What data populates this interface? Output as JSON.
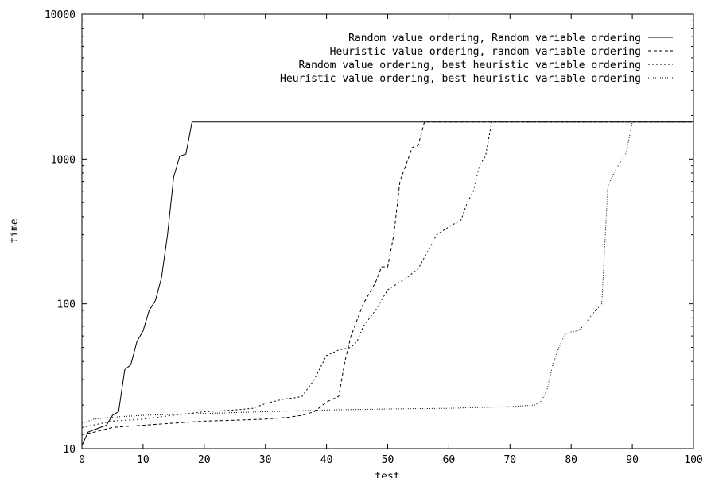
{
  "chart_data": {
    "type": "line",
    "xlabel": "test",
    "ylabel": "time",
    "xlim": [
      0,
      100
    ],
    "ylim": [
      10,
      10000
    ],
    "yscale": "log",
    "grid": false,
    "legend_position": "top-right",
    "x_ticks": [
      0,
      10,
      20,
      30,
      40,
      50,
      60,
      70,
      80,
      90,
      100
    ],
    "y_ticks": [
      10,
      100,
      1000,
      10000
    ],
    "x_tick_labels": [
      "0",
      "10",
      "20",
      "30",
      "40",
      "50",
      "60",
      "70",
      "80",
      "90",
      "100"
    ],
    "y_tick_labels": [
      "10",
      "100",
      "1000",
      "10000"
    ],
    "series": [
      {
        "name": "Random value ordering, Random variable ordering",
        "dash": "solid",
        "x": [
          0,
          1,
          2,
          3,
          4,
          5,
          6,
          7,
          8,
          9,
          10,
          11,
          12,
          13,
          14,
          15,
          16,
          17,
          18,
          100
        ],
        "y": [
          10.5,
          13,
          13.5,
          14,
          14.5,
          17,
          18,
          35,
          38,
          55,
          65,
          90,
          105,
          150,
          300,
          750,
          1050,
          1080,
          1800,
          1800
        ]
      },
      {
        "name": "Heuristic value ordering, random variable ordering",
        "dash": "dashed",
        "x": [
          0,
          2,
          5,
          10,
          15,
          20,
          25,
          30,
          34,
          36,
          38,
          40,
          42,
          43,
          44,
          46,
          48,
          49,
          50,
          51,
          52,
          54,
          55,
          56,
          100
        ],
        "y": [
          12.5,
          13,
          14,
          14.5,
          15,
          15.5,
          15.7,
          16,
          16.5,
          17,
          18,
          21,
          23,
          40,
          60,
          100,
          140,
          180,
          180,
          300,
          700,
          1200,
          1250,
          1800,
          1800
        ]
      },
      {
        "name": "Random value ordering, best heuristic variable ordering",
        "dash": "dotted",
        "x": [
          0,
          5,
          10,
          15,
          20,
          25,
          28,
          30,
          33,
          35,
          36,
          38,
          40,
          42,
          44,
          45,
          46,
          48,
          50,
          53,
          55,
          57,
          58,
          60,
          62,
          63,
          64,
          65,
          66,
          67,
          100
        ],
        "y": [
          14,
          15.5,
          16,
          17,
          18,
          18.5,
          19,
          20.5,
          22,
          22.5,
          23,
          30,
          44,
          48,
          50,
          55,
          70,
          90,
          125,
          150,
          175,
          250,
          300,
          340,
          380,
          500,
          600,
          900,
          1050,
          1800,
          1800
        ]
      },
      {
        "name": "Heuristic value ordering, best heuristic variable ordering",
        "dash": "fine-dotted",
        "x": [
          0,
          2,
          5,
          10,
          20,
          30,
          40,
          50,
          60,
          70,
          74,
          75,
          76,
          77,
          78,
          79,
          80,
          81,
          82,
          83,
          84,
          85,
          86,
          87,
          88,
          89,
          90,
          100
        ],
        "y": [
          15,
          16,
          16.5,
          17,
          17.5,
          18,
          18.5,
          18.8,
          19,
          19.5,
          20,
          21,
          25,
          38,
          50,
          62,
          64,
          65,
          70,
          80,
          90,
          100,
          650,
          800,
          950,
          1100,
          1800,
          1800
        ]
      }
    ]
  }
}
